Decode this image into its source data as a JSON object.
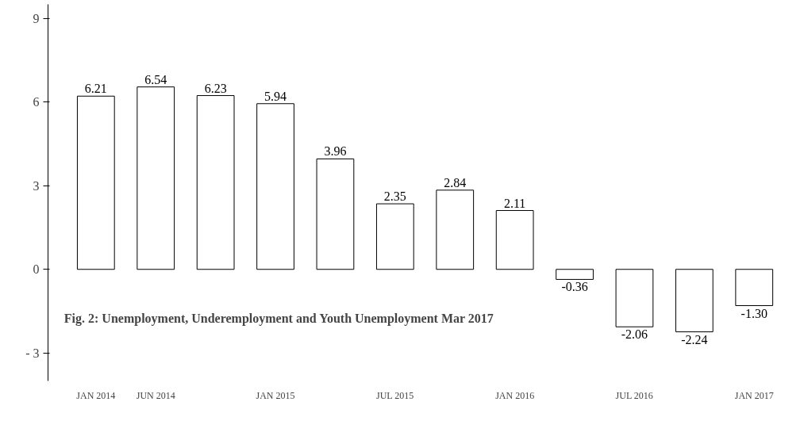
{
  "chart_data": {
    "type": "bar",
    "categories": [
      "JAN 2014",
      "JUN 2014",
      null,
      "JAN 2015",
      null,
      "JUL 2015",
      null,
      "JAN 2016",
      null,
      "JUL 2016",
      null,
      "JAN 2017"
    ],
    "values": [
      6.21,
      6.54,
      6.23,
      5.94,
      3.96,
      2.35,
      2.84,
      2.11,
      -0.36,
      -2.06,
      -2.24,
      -1.3
    ],
    "value_labels": [
      "6.21",
      "6.54",
      "6.23",
      "5.94",
      "3.96",
      "2.35",
      "2.84",
      "2.11",
      "-0.36",
      "-2.06",
      "-2.24",
      "-1.30"
    ],
    "color": "#ffffff",
    "ylim": [
      -4,
      9.5
    ],
    "yticks": [
      {
        "value": -3,
        "label": "- 3"
      },
      0,
      3,
      6,
      9
    ],
    "grid": false,
    "annotations": [
      "Fig. 2:   Unemployment, Underemployment and Youth Unemployment Mar 2017"
    ]
  }
}
